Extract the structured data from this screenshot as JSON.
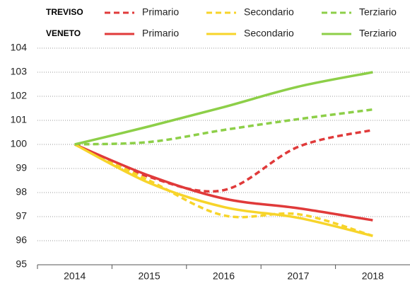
{
  "chart_data": {
    "type": "line",
    "categories": [
      "2014",
      "2015",
      "2016",
      "2017",
      "2018"
    ],
    "ylim": [
      95,
      104
    ],
    "yticks": [
      95,
      96,
      97,
      98,
      99,
      100,
      101,
      102,
      103,
      104
    ],
    "grid": true,
    "groups": [
      {
        "name": "TREVISO",
        "dashed": true,
        "series": [
          {
            "name": "Primario",
            "color": "#e03a3a",
            "values": [
              100,
              98.65,
              98.1,
              99.9,
              100.6
            ]
          },
          {
            "name": "Secondario",
            "color": "#f7d42a",
            "values": [
              100,
              98.5,
              97.05,
              97.1,
              96.2
            ]
          },
          {
            "name": "Terziario",
            "color": "#8dcf48",
            "values": [
              100,
              100.1,
              100.6,
              101.05,
              101.45
            ]
          }
        ]
      },
      {
        "name": "VENETO",
        "dashed": false,
        "series": [
          {
            "name": "Primario",
            "color": "#e03a3a",
            "values": [
              100,
              98.7,
              97.75,
              97.35,
              96.85
            ]
          },
          {
            "name": "Secondario",
            "color": "#f7d42a",
            "values": [
              100,
              98.4,
              97.4,
              96.95,
              96.2
            ]
          },
          {
            "name": "Terziario",
            "color": "#8dcf48",
            "values": [
              100,
              100.75,
              101.55,
              102.4,
              103.0
            ]
          }
        ]
      }
    ]
  }
}
